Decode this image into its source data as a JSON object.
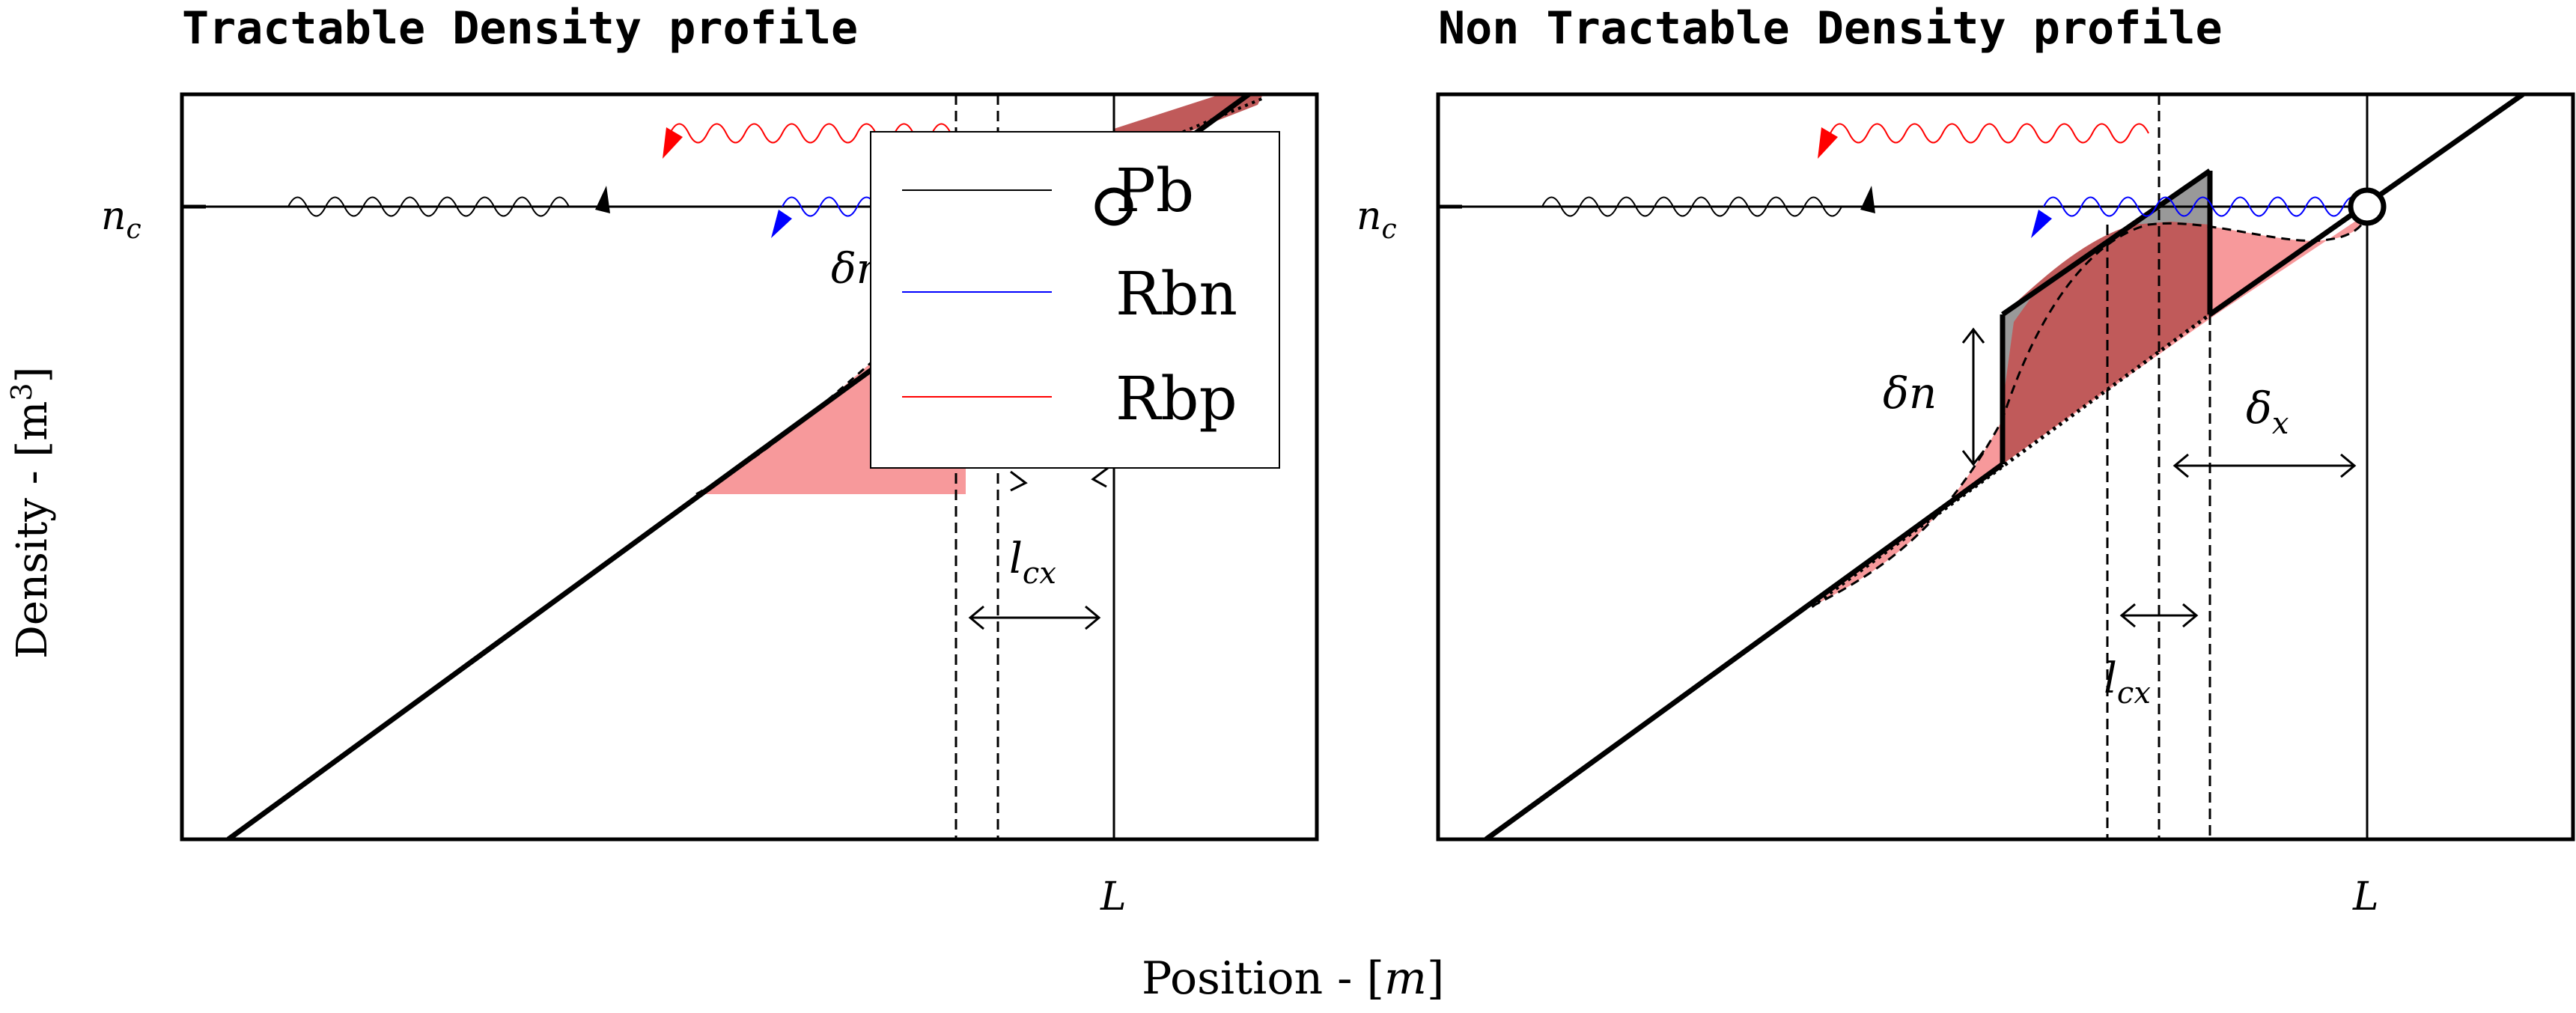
{
  "panels": [
    {
      "title": "Tractable Density profile",
      "nc_label": "n",
      "nc_sub": "c",
      "L_label": "L",
      "lcx_label": "l",
      "lcx_sub": "cx",
      "delta_n_fragment": "δn"
    },
    {
      "title": "Non Tractable Density profile",
      "nc_label": "n",
      "nc_sub": "c",
      "L_label": "L",
      "lcx_label": "l",
      "lcx_sub": "cx",
      "delta_n_label": "δn",
      "delta_x_label": "δ",
      "delta_x_sub": "x"
    }
  ],
  "y_axis_label": "Density - [m",
  "y_axis_sup": "3",
  "y_axis_end": "]",
  "x_axis_label": "Position - [",
  "x_axis_var": "m",
  "x_axis_end": "]",
  "legend": [
    {
      "label": "Pb",
      "color": "#000000"
    },
    {
      "label": "Rbn",
      "color": "#0000ff"
    },
    {
      "label": "Rbp",
      "color": "#ff0000"
    }
  ],
  "colors": {
    "fill_light": "#f7999b",
    "fill_dark": "#c05a5a",
    "fill_gray": "#999999",
    "wave_black": "#000000",
    "wave_blue": "#0000ff",
    "wave_red": "#ff0000"
  }
}
